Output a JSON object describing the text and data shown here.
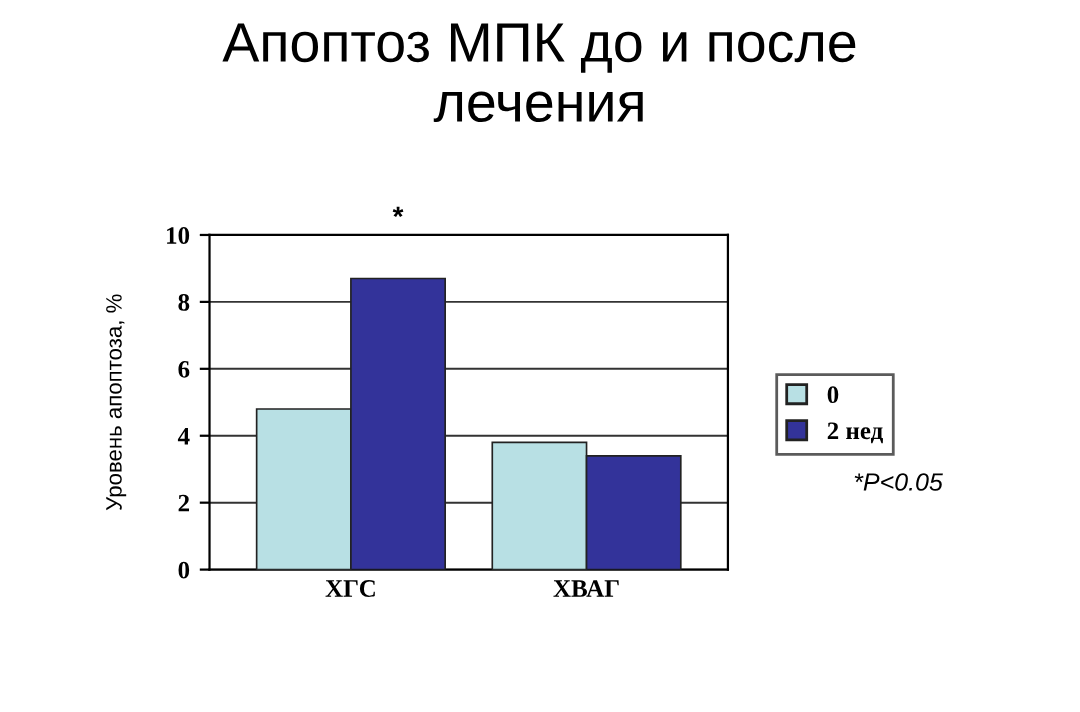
{
  "chart_data": {
    "type": "bar",
    "title": "Апоптоз МПК до и после\nлечения",
    "ylabel": "Уровень апоптоза, %",
    "categories": [
      "ХГС",
      "ХВАГ"
    ],
    "series": [
      {
        "name": "0",
        "color": "#b8e0e4",
        "values": [
          4.8,
          3.8
        ]
      },
      {
        "name": "2 нед",
        "color": "#33339a",
        "values": [
          8.7,
          3.4
        ]
      }
    ],
    "ylim": [
      0,
      10
    ],
    "yticks": [
      0,
      2,
      4,
      6,
      8,
      10
    ],
    "grid": "y",
    "legend": "right",
    "annotations": [
      "*",
      "*P<0.05"
    ]
  }
}
